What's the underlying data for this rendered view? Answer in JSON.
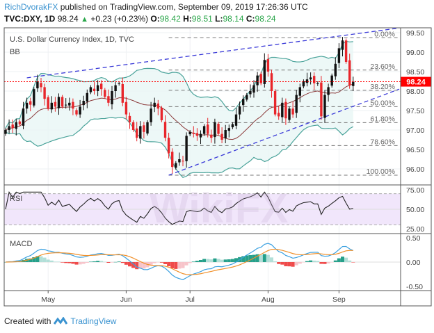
{
  "header": {
    "user": "RichDvorakFX",
    "published": "published on TradingView.com, September 09, 2019 17:26:36 UTC",
    "symbol": "TVC:DXY, 1D",
    "last": "98.24",
    "change": "+0.23 (+0.23%)",
    "o_label": "O:",
    "o": "98.42",
    "h_label": "H:",
    "h": "98.51",
    "l_label": "L:",
    "l": "98.14",
    "c_label": "C:",
    "c": "98.24"
  },
  "footer": {
    "created_with": "Created with",
    "brand": "TradingView"
  },
  "watermark": "WikiFX",
  "colors": {
    "up": "#111111",
    "down": "#e8262b",
    "band": "#4aa39a",
    "band_fill": "#e8f6f5",
    "basis": "#8c3b3b",
    "trend": "#3a3ad8",
    "rsi": "#222222",
    "rsi_fill": "#f1e6fb",
    "macd": "#3aa0e0",
    "signal": "#f0902a",
    "hist_up": "#26a08a",
    "hist_up_light": "#b2dfd8",
    "hist_dn": "#ef4a4a",
    "hist_dn_light": "#f7c4ca",
    "price_tag": "#ff0000"
  },
  "chart_data": {
    "type": "candlestick",
    "title": "U.S. Dollar Currency Index, 1D, TVC",
    "indicator_label": "BB",
    "x_ticks": [
      {
        "label": "May",
        "index": 12
      },
      {
        "label": "Jun",
        "index": 34
      },
      {
        "label": "Jul",
        "index": 52
      },
      {
        "label": "Aug",
        "index": 74
      },
      {
        "label": "Sep",
        "index": 94
      }
    ],
    "closes": [
      97.0,
      97.1,
      97.05,
      97.2,
      97.15,
      97.55,
      97.7,
      97.65,
      98.05,
      98.25,
      98.1,
      97.8,
      97.55,
      97.7,
      97.6,
      97.85,
      97.6,
      97.65,
      97.7,
      97.55,
      97.4,
      97.6,
      97.75,
      97.95,
      98.1,
      98.0,
      98.15,
      98.05,
      97.85,
      97.7,
      98.0,
      98.15,
      98.2,
      97.7,
      97.4,
      97.2,
      97.0,
      96.8,
      97.1,
      96.95,
      97.2,
      97.55,
      97.7,
      97.55,
      97.25,
      96.8,
      96.4,
      96.05,
      96.15,
      96.25,
      96.2,
      96.85,
      96.95,
      96.9,
      96.85,
      96.9,
      97.1,
      96.9,
      96.8,
      97.2,
      96.9,
      96.75,
      97.0,
      97.05,
      97.15,
      97.4,
      97.6,
      97.8,
      97.9,
      98.0,
      98.15,
      98.4,
      98.2,
      98.8,
      98.5,
      98.0,
      97.4,
      97.35,
      97.7,
      97.3,
      97.55,
      97.4,
      97.9,
      98.1,
      98.25,
      98.3,
      98.35,
      98.2,
      98.2,
      97.35,
      97.9,
      98.1,
      98.4,
      98.7,
      99.1,
      99.3,
      98.75,
      98.15,
      98.24
    ],
    "y_ticks": [
      "99.50",
      "99.00",
      "98.50",
      "98.00",
      "97.50",
      "97.00",
      "96.50",
      "96.00"
    ],
    "ylim": [
      95.7,
      99.85
    ],
    "last_price": "98.24",
    "fib_levels": [
      {
        "label": "0.00%",
        "price": 99.37
      },
      {
        "label": "23.60%",
        "price": 98.54
      },
      {
        "label": "38.20%",
        "price": 98.02
      },
      {
        "label": "50.00%",
        "price": 97.6
      },
      {
        "label": "61.80%",
        "price": 97.19
      },
      {
        "label": "78.60%",
        "price": 96.6
      },
      {
        "label": "100.00%",
        "price": 95.84
      }
    ],
    "trendlines": [
      {
        "from": [
          6,
          98.34
        ],
        "to": [
          111,
          99.62
        ]
      },
      {
        "from": [
          46,
          95.84
        ],
        "to": [
          111,
          98.05
        ]
      }
    ],
    "rsi": {
      "label": "RSI",
      "y_ticks": [
        "75.00",
        "50.00",
        "25.00"
      ],
      "band": [
        30,
        70
      ],
      "ylim": [
        20,
        80
      ]
    },
    "macd": {
      "label": "MACD",
      "y_ticks": [
        "0.50",
        "0.00",
        "-0.50"
      ],
      "ylim": [
        -0.55,
        0.55
      ]
    }
  }
}
